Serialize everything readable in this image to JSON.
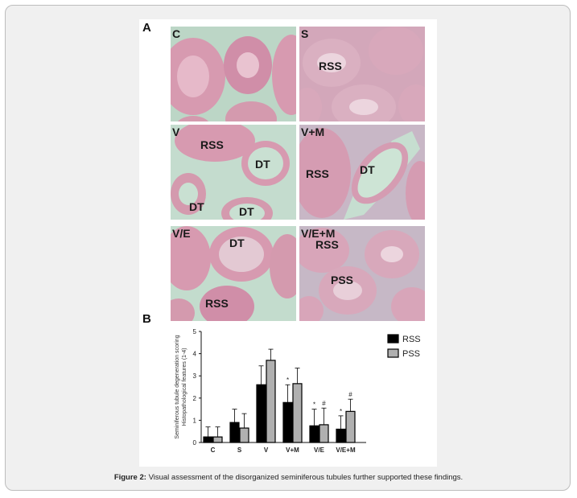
{
  "figure": {
    "panel_a_letter": "A",
    "panel_b_letter": "B",
    "panels": [
      {
        "id": "C",
        "labels": [
          "C"
        ]
      },
      {
        "id": "S",
        "labels": [
          "S",
          "RSS"
        ]
      },
      {
        "id": "V",
        "labels": [
          "V",
          "RSS",
          "DT",
          "DT",
          "DT"
        ]
      },
      {
        "id": "V+M",
        "labels": [
          "V+M",
          "RSS",
          "DT"
        ]
      },
      {
        "id": "V/E",
        "labels": [
          "V/E",
          "DT",
          "RSS"
        ]
      },
      {
        "id": "V/E+M",
        "labels": [
          "V/E+M",
          "RSS",
          "PSS"
        ]
      }
    ],
    "stain_colors": {
      "lumen": "#cfe3d2",
      "tissue": "#d79ab0",
      "background": "#bcd6c6"
    }
  },
  "chart_data": {
    "type": "bar",
    "ylabel_line1": "Seminiferous tubule degeneration scoring",
    "ylabel_line2": "Histopathological features (1-4)",
    "ylim": [
      0,
      5
    ],
    "yticks": [
      "0",
      "1",
      "2",
      "3",
      "4",
      "5"
    ],
    "categories": [
      "C",
      "S",
      "V",
      "V+M",
      "V/E",
      "V/E+M"
    ],
    "series": [
      {
        "name": "RSS",
        "color": "#000000",
        "values": [
          0.25,
          0.9,
          2.6,
          1.8,
          0.75,
          0.6
        ],
        "errors": [
          0.45,
          0.6,
          0.85,
          0.8,
          0.75,
          0.6
        ]
      },
      {
        "name": "PSS",
        "color": "#b0b0b0",
        "values": [
          0.25,
          0.65,
          3.7,
          2.65,
          0.8,
          1.4
        ],
        "errors": [
          0.45,
          0.65,
          0.5,
          0.7,
          0.75,
          0.55
        ]
      }
    ],
    "annotations": [
      {
        "category": "V+M",
        "series": "RSS",
        "text": "*"
      },
      {
        "category": "V/E",
        "series": "RSS",
        "text": "*"
      },
      {
        "category": "V/E",
        "series": "PSS",
        "text": "#"
      },
      {
        "category": "V/E+M",
        "series": "RSS",
        "text": "*"
      },
      {
        "category": "V/E+M",
        "series": "PSS",
        "text": "#"
      }
    ],
    "legend_position": "top-right"
  },
  "caption": {
    "label": "Figure 2:",
    "text": " Visual assessment of the disorganized seminiferous tubules further supported these findings."
  }
}
